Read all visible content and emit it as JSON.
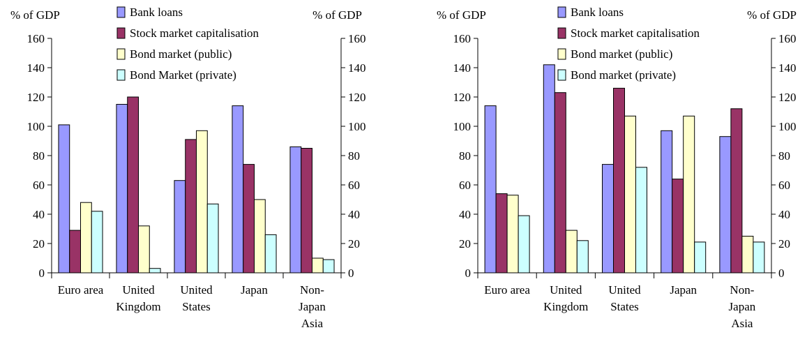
{
  "colors": {
    "bank_loans": "#9999ff",
    "stock_market": "#993366",
    "bond_public": "#ffffcc",
    "bond_private": "#ccffff",
    "stroke": "#000000"
  },
  "chart_data": [
    {
      "type": "bar",
      "ylabel_left": "% of GDP",
      "ylabel_right": "% of GDP",
      "ylim": [
        0,
        160
      ],
      "yticks": [
        "0",
        "20",
        "40",
        "60",
        "80",
        "100",
        "120",
        "140",
        "160"
      ],
      "grid": false,
      "legend_placement": "top-center",
      "categories": [
        [
          "Euro area"
        ],
        [
          "United",
          "Kingdom"
        ],
        [
          "United",
          "States"
        ],
        [
          "Japan"
        ],
        [
          "Non-",
          "Japan",
          "Asia"
        ]
      ],
      "series": [
        {
          "name": "Bank loans",
          "color_key": "bank_loans",
          "values": [
            101,
            115,
            63,
            114,
            86
          ]
        },
        {
          "name": "Stock market capitalisation",
          "color_key": "stock_market",
          "values": [
            29,
            120,
            91,
            74,
            85
          ]
        },
        {
          "name": "Bond market (public)",
          "color_key": "bond_public",
          "values": [
            48,
            32,
            97,
            50,
            10
          ]
        },
        {
          "name": "Bond Market (private)",
          "color_key": "bond_private",
          "values": [
            42,
            3,
            47,
            26,
            9
          ]
        }
      ]
    },
    {
      "type": "bar",
      "ylabel_left": "% of GDP",
      "ylabel_right": "% of GDP",
      "ylim": [
        0,
        160
      ],
      "yticks": [
        "0",
        "20",
        "40",
        "60",
        "80",
        "100",
        "120",
        "140",
        "160"
      ],
      "grid": false,
      "legend_placement": "top-center",
      "categories": [
        [
          "Euro area"
        ],
        [
          "United",
          "Kingdom"
        ],
        [
          "United",
          "States"
        ],
        [
          "Japan"
        ],
        [
          "Non-",
          "Japan",
          "Asia"
        ]
      ],
      "series": [
        {
          "name": "Bank loans",
          "color_key": "bank_loans",
          "values": [
            114,
            142,
            74,
            97,
            93
          ]
        },
        {
          "name": "Stock market capitalisation",
          "color_key": "stock_market",
          "values": [
            54,
            123,
            126,
            64,
            112
          ]
        },
        {
          "name": "Bond market (public)",
          "color_key": "bond_public",
          "values": [
            53,
            29,
            107,
            107,
            25
          ]
        },
        {
          "name": "Bond market (private)",
          "color_key": "bond_private",
          "values": [
            39,
            22,
            72,
            21,
            21
          ]
        }
      ]
    }
  ]
}
